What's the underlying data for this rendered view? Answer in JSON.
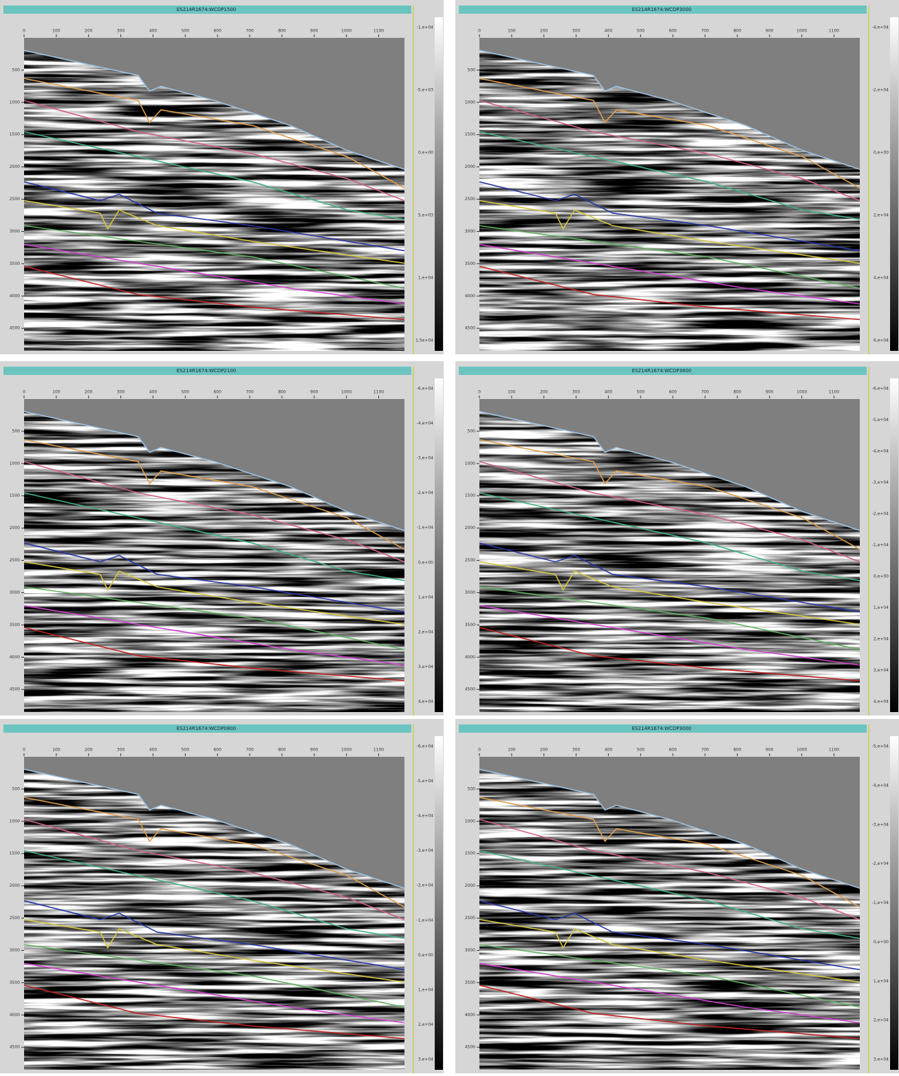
{
  "panels": [
    {
      "title": "ES214R1674:WCDP1500",
      "xticks": [
        0,
        100,
        200,
        300,
        400,
        500,
        600,
        700,
        800,
        900,
        1000,
        1100
      ],
      "xlim": [
        0,
        1180
      ],
      "yticks": [
        500,
        1000,
        1500,
        2000,
        2500,
        3000,
        3500,
        4000,
        4500
      ],
      "ylim": [
        0,
        4850
      ],
      "colorbar_labels": [
        "-1,e+04",
        "-5,e+03",
        "0,e+00",
        "5,e+03",
        "1,e+04",
        "1,5e+04"
      ]
    },
    {
      "title": "ES214R1674:WCDP3000",
      "xticks": [
        0,
        100,
        200,
        300,
        400,
        500,
        600,
        700,
        800,
        900,
        1000,
        1100
      ],
      "xlim": [
        0,
        1180
      ],
      "yticks": [
        500,
        1000,
        1500,
        2000,
        2500,
        3000,
        3500,
        4000,
        4500
      ],
      "ylim": [
        0,
        4850
      ],
      "colorbar_labels": [
        "-4,e+04",
        "-2,e+04",
        "0,e+00",
        "2,e+04",
        "4,e+04",
        "6,e+04"
      ]
    },
    {
      "title": "ES214R1674:WCDP2100",
      "xticks": [
        0,
        100,
        200,
        300,
        400,
        500,
        600,
        700,
        800,
        900,
        1000,
        1100
      ],
      "xlim": [
        0,
        1180
      ],
      "yticks": [
        500,
        1000,
        1500,
        2000,
        2500,
        3000,
        3500,
        4000,
        4500
      ],
      "ylim": [
        0,
        4850
      ],
      "colorbar_labels": [
        "-6,e+04",
        "-4,e+04",
        "-3,e+04",
        "-2,e+04",
        "-1,e+04",
        "0,e+00",
        "1,e+04",
        "2,e+04",
        "3,e+04",
        "4,e+04"
      ]
    },
    {
      "title": "ES214R1674:WCDP3600",
      "xticks": [
        0,
        100,
        200,
        300,
        400,
        500,
        600,
        700,
        800,
        900,
        1000,
        1100
      ],
      "xlim": [
        0,
        1180
      ],
      "yticks": [
        500,
        1000,
        1500,
        2000,
        2500,
        3000,
        3500,
        4000,
        4500
      ],
      "ylim": [
        0,
        4850
      ],
      "colorbar_labels": [
        "-6,e+04",
        "-5,e+04",
        "-4,e+04",
        "-3,e+04",
        "-2,e+04",
        "-1,e+04",
        "0,e+00",
        "1,e+04",
        "2,e+04",
        "3,e+04",
        "4,e+04"
      ]
    },
    {
      "title": "ES214R1674:WCDP0800",
      "xticks": [
        0,
        100,
        200,
        300,
        400,
        500,
        600,
        700,
        800,
        900,
        1000,
        1100
      ],
      "xlim": [
        0,
        1180
      ],
      "yticks": [
        500,
        1000,
        1500,
        2000,
        2500,
        3000,
        3500,
        4000,
        4500
      ],
      "ylim": [
        0,
        4850
      ],
      "colorbar_labels": [
        "-6,e+04",
        "-5,e+04",
        "-4,e+04",
        "-3,e+04",
        "-2,e+04",
        "-1,e+04",
        "0,e+00",
        "1,e+04",
        "2,e+04",
        "3,e+04"
      ]
    },
    {
      "title": "ES214R1674:WCDP3000",
      "xticks": [
        0,
        100,
        200,
        300,
        400,
        500,
        600,
        700,
        800,
        900,
        1000,
        1100
      ],
      "xlim": [
        0,
        1180
      ],
      "yticks": [
        500,
        1000,
        1500,
        2000,
        2500,
        3000,
        3500,
        4000,
        4500
      ],
      "ylim": [
        0,
        4850
      ],
      "colorbar_labels": [
        "-5,e+04",
        "-4,e+04",
        "-3,e+04",
        "-2,e+04",
        "-1,e+04",
        "0,e+00",
        "1,e+04",
        "2,e+04",
        "3,e+04"
      ]
    }
  ]
}
